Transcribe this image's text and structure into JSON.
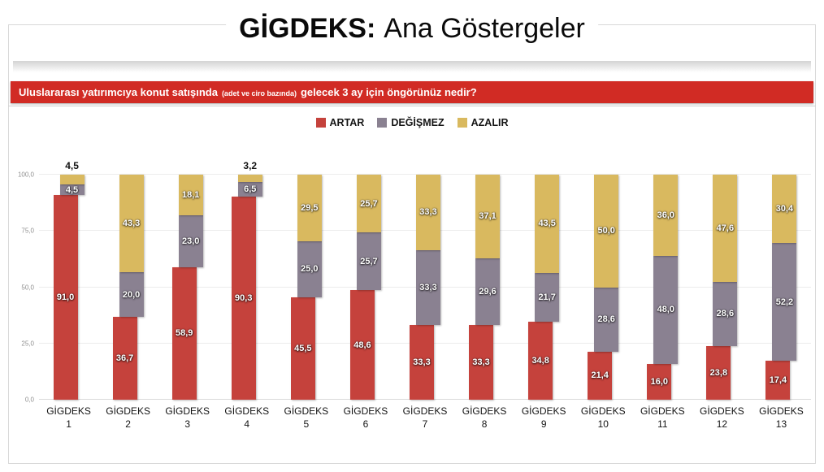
{
  "title": {
    "brand": "GİGDEKS:",
    "rest": "Ana Göstergeler"
  },
  "question": {
    "part1": "Uluslararası yatırımcıya konut satışında",
    "parenthetical": "(adet ve ciro bazında)",
    "part2": "gelecek 3 ay için öngörünüz nedir?"
  },
  "colors": {
    "banner_red": "#d12b24",
    "artar_red": "#c5423c",
    "degismez_gray": "#8a8191",
    "azalir_yellow": "#d9b95f"
  },
  "chart_data": {
    "type": "bar",
    "stacked": true,
    "stack_total": 100,
    "legend_position": "top",
    "grid": true,
    "ylim": [
      0,
      100
    ],
    "categories": [
      "GİGDEKS 1",
      "GİGDEKS 2",
      "GİGDEKS 3",
      "GİGDEKS 4",
      "GİGDEKS 5",
      "GİGDEKS 6",
      "GİGDEKS 7",
      "GİGDEKS 8",
      "GİGDEKS 9",
      "GİGDEKS 10",
      "GİGDEKS 11",
      "GİGDEKS 12",
      "GİGDEKS 13"
    ],
    "series": [
      {
        "name": "ARTAR",
        "color": "#c5423c",
        "values": [
          91.0,
          36.7,
          58.9,
          90.3,
          45.5,
          48.6,
          33.3,
          33.3,
          34.8,
          21.4,
          16.0,
          23.8,
          17.4
        ]
      },
      {
        "name": "DEĞİŞMEZ",
        "color": "#8a8191",
        "values": [
          4.5,
          20.0,
          23.0,
          6.5,
          25.0,
          25.7,
          33.3,
          29.6,
          21.7,
          28.6,
          48.0,
          28.6,
          52.2
        ]
      },
      {
        "name": "AZALIR",
        "color": "#d9b95f",
        "values": [
          4.5,
          43.3,
          18.1,
          3.2,
          29.5,
          25.7,
          33.3,
          37.1,
          43.5,
          50.0,
          36.0,
          47.6,
          30.4
        ]
      }
    ],
    "yticks": [
      {
        "label": "0,0",
        "value": 0
      },
      {
        "label": "25,0",
        "value": 25
      },
      {
        "label": "50,0",
        "value": 50
      },
      {
        "label": "75,0",
        "value": 75
      },
      {
        "label": "100,0",
        "value": 100
      }
    ],
    "value_label_format": "comma-decimal-1"
  }
}
